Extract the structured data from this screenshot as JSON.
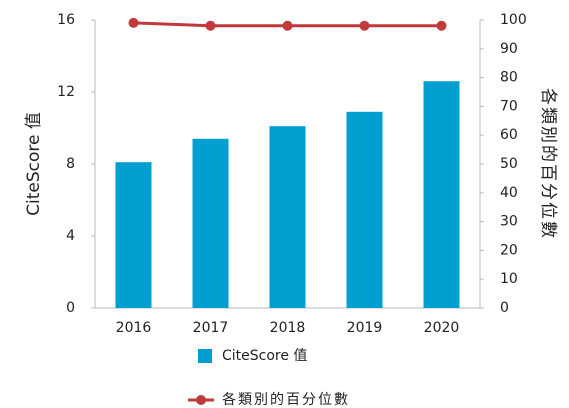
{
  "chart_data": {
    "type": "bar",
    "categories": [
      "2016",
      "2017",
      "2018",
      "2019",
      "2020"
    ],
    "series": [
      {
        "name": "CiteScore 值",
        "type": "bar",
        "color": "#009fd1",
        "values": [
          8.1,
          9.4,
          10.1,
          10.9,
          12.6
        ]
      },
      {
        "name": "各類別的百分位數",
        "type": "line",
        "axis": "y2",
        "color": "#c0393b",
        "values": [
          99,
          98,
          98,
          98,
          98
        ]
      }
    ],
    "ylabel": "CiteScore 值",
    "y2label": "各類別的百分位數",
    "ylim": [
      0,
      16
    ],
    "yticks": [
      0,
      4,
      8,
      12,
      16
    ],
    "y2lim": [
      0,
      100
    ],
    "y2ticks": [
      0,
      10,
      20,
      30,
      40,
      50,
      60,
      70,
      80,
      90,
      100
    ],
    "grid": false
  }
}
